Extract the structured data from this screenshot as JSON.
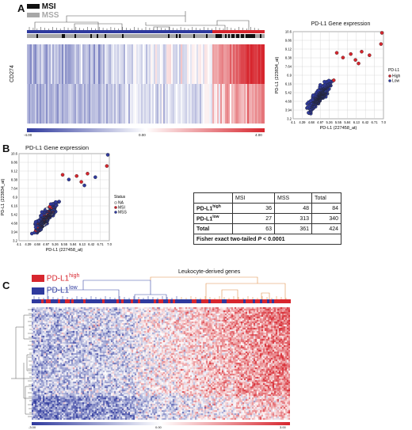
{
  "panels": {
    "a": "A",
    "b": "B",
    "c": "C"
  },
  "panel_a": {
    "legend": [
      {
        "label": "MSI",
        "color": "#111111"
      },
      {
        "label": "MSS",
        "color": "#a8a8a8"
      }
    ],
    "heatmap_row_label": "CD274",
    "colorbar": {
      "min": "-4.00",
      "mid": "0.00",
      "max": "4.00"
    },
    "scatter": {
      "title": "PD-L1 Gene expression",
      "xlabel": "PD-L1 (227458_at)",
      "ylabel": "PD-L1 (223834_at)",
      "xticks": [
        "4.1",
        "4.39",
        "4.68",
        "4.97",
        "5.26",
        "5.55",
        "5.84",
        "6.13",
        "6.42",
        "6.71",
        "7.0"
      ],
      "yticks": [
        "10.6",
        "9.86",
        "9.12",
        "8.38",
        "7.64",
        "6.9",
        "6.16",
        "5.42",
        "4.68",
        "3.94",
        "3.2"
      ],
      "legend_title": "PD-L1",
      "legend": [
        {
          "label": "High",
          "color": "#c8202a"
        },
        {
          "label": "Low",
          "color": "#2f3a9e"
        }
      ]
    }
  },
  "panel_b": {
    "scatter": {
      "title": "PD-L1 Gene expression",
      "xlabel": "PD-L1 (227458_at)",
      "ylabel": "PD-L1 (223834_at)",
      "xticks": [
        "4.1",
        "4.39",
        "4.68",
        "4.97",
        "5.26",
        "5.55",
        "5.84",
        "6.13",
        "6.42",
        "6.71",
        "7.0"
      ],
      "yticks": [
        "10.6",
        "9.86",
        "9.12",
        "8.38",
        "7.64",
        "6.9",
        "6.16",
        "5.42",
        "4.68",
        "3.94",
        "3.2"
      ],
      "legend_title": "Status",
      "legend": [
        {
          "label": "NA",
          "color": "#d9d9d9"
        },
        {
          "label": "MSI",
          "color": "#c8202a"
        },
        {
          "label": "MSS",
          "color": "#2f3a9e"
        }
      ]
    },
    "table": {
      "headers": [
        "",
        "MSI",
        "MSS",
        "Total"
      ],
      "rows": [
        {
          "label_base": "PD-L1",
          "label_sup": "high",
          "msi": "36",
          "mss": "48",
          "total": "84"
        },
        {
          "label_base": "PD-L1",
          "label_sup": "low",
          "msi": "27",
          "mss": "313",
          "total": "340"
        },
        {
          "label_base": "Total",
          "label_sup": "",
          "msi": "63",
          "mss": "361",
          "total": "424"
        }
      ],
      "footer_prefix": "Fisher exact two-tailed ",
      "footer_p": "P",
      "footer_suffix": " < 0.0001"
    }
  },
  "panel_c": {
    "legend": [
      {
        "label_base": "PD-L1",
        "label_sup": "high",
        "color": "#d7262e"
      },
      {
        "label_base": "PD-L1",
        "label_sup": "low",
        "color": "#2f3a9e"
      }
    ],
    "title": "Leukocyte-derived genes",
    "colorbar": {
      "min": "-3.00",
      "mid": "0.00",
      "max": "3.00"
    }
  },
  "colors": {
    "red": "#d7262e",
    "blue": "#2f3a9e",
    "white": "#ffffff"
  }
}
